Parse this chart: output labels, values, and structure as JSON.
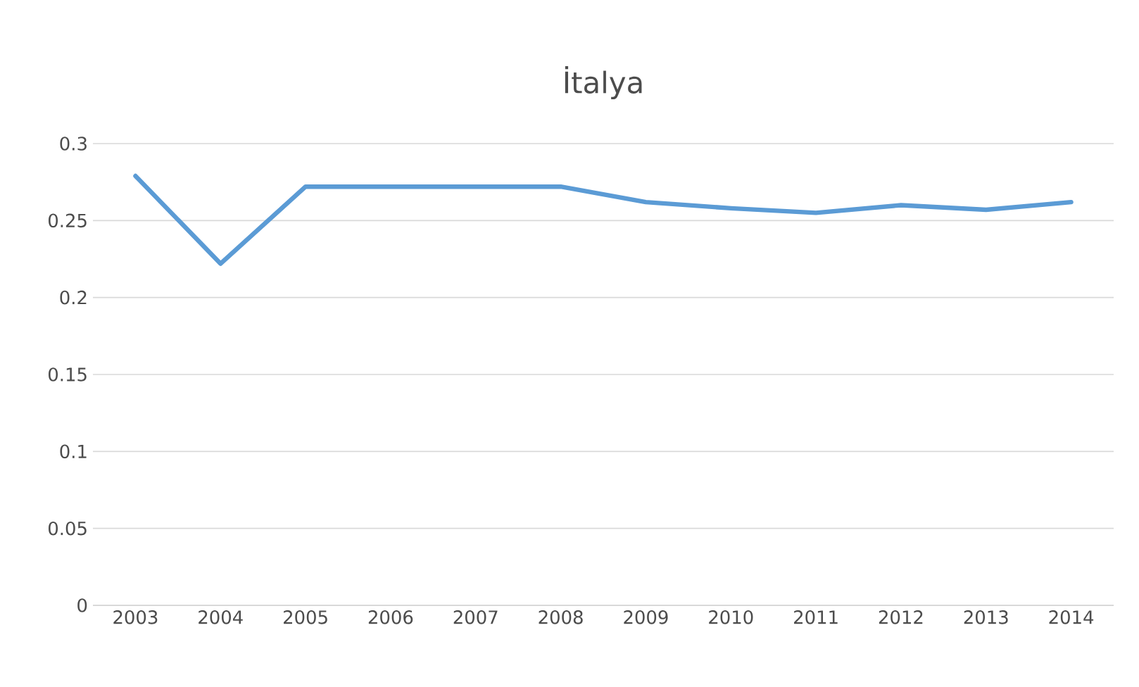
{
  "chart_data": {
    "type": "line",
    "title": "İtalya",
    "categories": [
      "2003",
      "2004",
      "2005",
      "2006",
      "2007",
      "2008",
      "2009",
      "2010",
      "2011",
      "2012",
      "2013",
      "2014"
    ],
    "series": [
      {
        "color": "#5b9bd5",
        "values": [
          0.279,
          0.222,
          0.272,
          0.272,
          0.272,
          0.272,
          0.262,
          0.258,
          0.255,
          0.26,
          0.257,
          0.262
        ]
      }
    ],
    "ylim": [
      0,
      0.3
    ],
    "yticks": [
      0,
      0.05,
      0.1,
      0.15,
      0.2,
      0.25,
      0.3
    ],
    "grid": "y",
    "marker": "none",
    "line_style": "solid"
  }
}
